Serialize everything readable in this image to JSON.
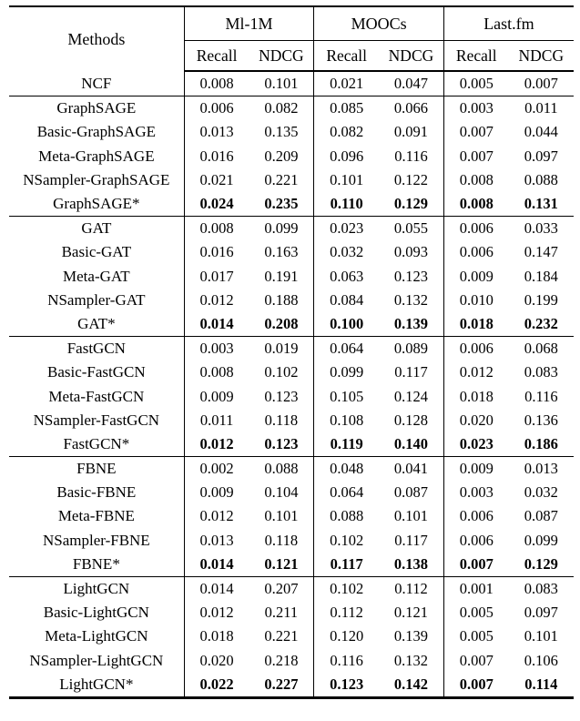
{
  "table": {
    "methods_header": "Methods",
    "col_groups": [
      {
        "label": "Ml-1M",
        "subcols": [
          "Recall",
          "NDCG"
        ]
      },
      {
        "label": "MOOCs",
        "subcols": [
          "Recall",
          "NDCG"
        ]
      },
      {
        "label": "Last.fm",
        "subcols": [
          "Recall",
          "NDCG"
        ]
      }
    ],
    "rule_color": "#000000",
    "text_color": "#000000",
    "background_color": "#ffffff",
    "blocks": [
      {
        "rows": [
          {
            "method": "NCF",
            "bold": false,
            "values": [
              "0.008",
              "0.101",
              "0.021",
              "0.047",
              "0.005",
              "0.007"
            ]
          }
        ]
      },
      {
        "rows": [
          {
            "method": "GraphSAGE",
            "bold": false,
            "values": [
              "0.006",
              "0.082",
              "0.085",
              "0.066",
              "0.003",
              "0.011"
            ]
          },
          {
            "method": "Basic-GraphSAGE",
            "bold": false,
            "values": [
              "0.013",
              "0.135",
              "0.082",
              "0.091",
              "0.007",
              "0.044"
            ]
          },
          {
            "method": "Meta-GraphSAGE",
            "bold": false,
            "values": [
              "0.016",
              "0.209",
              "0.096",
              "0.116",
              "0.007",
              "0.097"
            ]
          },
          {
            "method": "NSampler-GraphSAGE",
            "bold": false,
            "values": [
              "0.021",
              "0.221",
              "0.101",
              "0.122",
              "0.008",
              "0.088"
            ]
          },
          {
            "method": "GraphSAGE*",
            "bold": true,
            "values": [
              "0.024",
              "0.235",
              "0.110",
              "0.129",
              "0.008",
              "0.131"
            ]
          }
        ]
      },
      {
        "rows": [
          {
            "method": "GAT",
            "bold": false,
            "values": [
              "0.008",
              "0.099",
              "0.023",
              "0.055",
              "0.006",
              "0.033"
            ]
          },
          {
            "method": "Basic-GAT",
            "bold": false,
            "values": [
              "0.016",
              "0.163",
              "0.032",
              "0.093",
              "0.006",
              "0.147"
            ]
          },
          {
            "method": "Meta-GAT",
            "bold": false,
            "values": [
              "0.017",
              "0.191",
              "0.063",
              "0.123",
              "0.009",
              "0.184"
            ]
          },
          {
            "method": "NSampler-GAT",
            "bold": false,
            "values": [
              "0.012",
              "0.188",
              "0.084",
              "0.132",
              "0.010",
              "0.199"
            ]
          },
          {
            "method": "GAT*",
            "bold": true,
            "values": [
              "0.014",
              "0.208",
              "0.100",
              "0.139",
              "0.018",
              "0.232"
            ]
          }
        ]
      },
      {
        "rows": [
          {
            "method": "FastGCN",
            "bold": false,
            "values": [
              "0.003",
              "0.019",
              "0.064",
              "0.089",
              "0.006",
              "0.068"
            ]
          },
          {
            "method": "Basic-FastGCN",
            "bold": false,
            "values": [
              "0.008",
              "0.102",
              "0.099",
              "0.117",
              "0.012",
              "0.083"
            ]
          },
          {
            "method": "Meta-FastGCN",
            "bold": false,
            "values": [
              "0.009",
              "0.123",
              "0.105",
              "0.124",
              "0.018",
              "0.116"
            ]
          },
          {
            "method": "NSampler-FastGCN",
            "bold": false,
            "values": [
              "0.011",
              "0.118",
              "0.108",
              "0.128",
              "0.020",
              "0.136"
            ]
          },
          {
            "method": "FastGCN*",
            "bold": true,
            "values": [
              "0.012",
              "0.123",
              "0.119",
              "0.140",
              "0.023",
              "0.186"
            ]
          }
        ]
      },
      {
        "rows": [
          {
            "method": "FBNE",
            "bold": false,
            "values": [
              "0.002",
              "0.088",
              "0.048",
              "0.041",
              "0.009",
              "0.013"
            ]
          },
          {
            "method": "Basic-FBNE",
            "bold": false,
            "values": [
              "0.009",
              "0.104",
              "0.064",
              "0.087",
              "0.003",
              "0.032"
            ]
          },
          {
            "method": "Meta-FBNE",
            "bold": false,
            "values": [
              "0.012",
              "0.101",
              "0.088",
              "0.101",
              "0.006",
              "0.087"
            ]
          },
          {
            "method": "NSampler-FBNE",
            "bold": false,
            "values": [
              "0.013",
              "0.118",
              "0.102",
              "0.117",
              "0.006",
              "0.099"
            ]
          },
          {
            "method": "FBNE*",
            "bold": true,
            "values": [
              "0.014",
              "0.121",
              "0.117",
              "0.138",
              "0.007",
              "0.129"
            ]
          }
        ]
      },
      {
        "rows": [
          {
            "method": "LightGCN",
            "bold": false,
            "values": [
              "0.014",
              "0.207",
              "0.102",
              "0.112",
              "0.001",
              "0.083"
            ]
          },
          {
            "method": "Basic-LightGCN",
            "bold": false,
            "values": [
              "0.012",
              "0.211",
              "0.112",
              "0.121",
              "0.005",
              "0.097"
            ]
          },
          {
            "method": "Meta-LightGCN",
            "bold": false,
            "values": [
              "0.018",
              "0.221",
              "0.120",
              "0.139",
              "0.005",
              "0.101"
            ]
          },
          {
            "method": "NSampler-LightGCN",
            "bold": false,
            "values": [
              "0.020",
              "0.218",
              "0.116",
              "0.132",
              "0.007",
              "0.106"
            ]
          },
          {
            "method": "LightGCN*",
            "bold": true,
            "values": [
              "0.022",
              "0.227",
              "0.123",
              "0.142",
              "0.007",
              "0.114"
            ]
          }
        ]
      }
    ]
  }
}
